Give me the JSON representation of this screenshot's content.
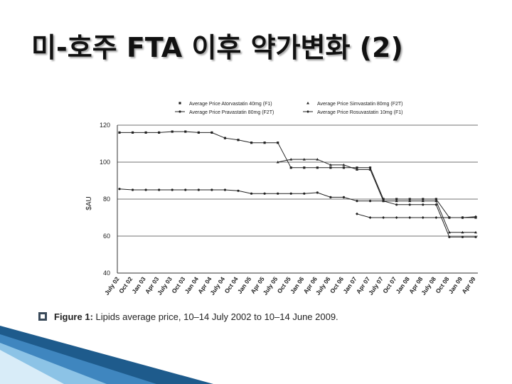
{
  "slide": {
    "title": "미-호주 FTA 이후 약가변화 (2)"
  },
  "caption": {
    "figure_label": "Figure 1:",
    "text": "Lipids average price, 10–14 July 2002 to 10–14 June 2009."
  },
  "chart_data": {
    "type": "line",
    "title": "",
    "xlabel": "",
    "ylabel": "$AU",
    "ylim": [
      40,
      120
    ],
    "yticks": [
      40,
      60,
      80,
      100,
      120
    ],
    "grid": "horizontal",
    "legend_position": "top",
    "categories": [
      "July 02",
      "Oct 02",
      "Jan 03",
      "Apr 03",
      "July 03",
      "Oct 03",
      "Jan 04",
      "Apr 04",
      "July 04",
      "Oct 04",
      "Jan 05",
      "Apr 05",
      "July 05",
      "Oct 05",
      "Jan 06",
      "Apr 06",
      "July 06",
      "Oct 06",
      "Jan 07",
      "Apr 07",
      "July 07",
      "Oct 07",
      "Jan 08",
      "Apr 08",
      "July 08",
      "Oct 08",
      "Jan 09",
      "Apr 09"
    ],
    "series": [
      {
        "name": "Average Price Atorvastatin 40mg (F1)",
        "marker": "square",
        "values": [
          116,
          116,
          116,
          116,
          116.5,
          116.5,
          116,
          116,
          113,
          112,
          110.5,
          110.5,
          110.5,
          97,
          97,
          97,
          97,
          97,
          97,
          97,
          80,
          80,
          80,
          80,
          80,
          70,
          70,
          70
        ]
      },
      {
        "name": "Average Price Simvastatin 80mg (F2T)",
        "marker": "triangle",
        "values": [
          null,
          null,
          null,
          null,
          null,
          null,
          null,
          null,
          null,
          null,
          null,
          null,
          100,
          101.5,
          101.5,
          101.5,
          98.5,
          98.5,
          96,
          96,
          79,
          79,
          79,
          79,
          79,
          62,
          62,
          62
        ]
      },
      {
        "name": "Average Price Pravastatin 80mg (F2T)",
        "marker": "circle",
        "values": [
          85.5,
          85,
          85,
          85,
          85,
          85,
          85,
          85,
          85,
          84.5,
          83,
          83,
          83,
          83,
          83,
          83.5,
          81,
          81,
          79,
          79,
          79,
          77,
          77,
          77,
          77,
          59.5,
          59.5,
          59.5
        ]
      },
      {
        "name": "Average Price Rosuvastatin 10mg (F1)",
        "marker": "diamond",
        "values": [
          null,
          null,
          null,
          null,
          null,
          null,
          null,
          null,
          null,
          null,
          null,
          null,
          null,
          null,
          null,
          null,
          null,
          null,
          72,
          70,
          70,
          70,
          70,
          70,
          70,
          70,
          70,
          70.5
        ]
      }
    ]
  },
  "colors": {
    "series_line": "#222222",
    "grid": "#444444",
    "accent_blue": "#1f6fa8"
  }
}
